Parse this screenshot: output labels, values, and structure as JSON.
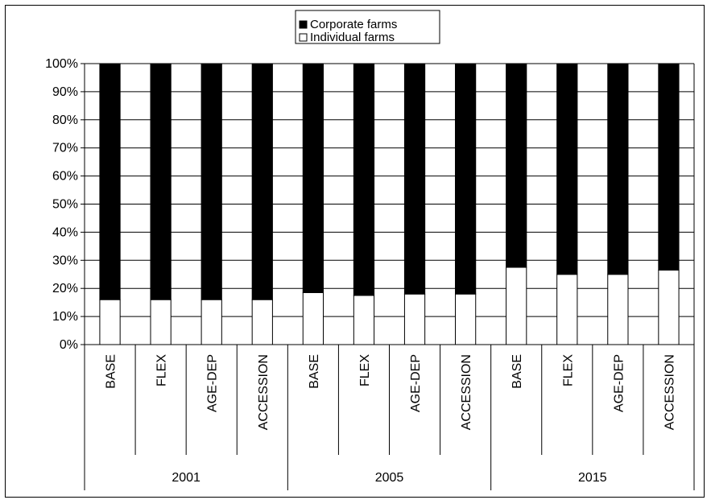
{
  "chart_data": {
    "type": "bar",
    "stacked": "percent",
    "title": "",
    "xlabel": "",
    "ylabel": "",
    "ylim": [
      0,
      100
    ],
    "y_ticks": [
      "0%",
      "10%",
      "20%",
      "30%",
      "40%",
      "50%",
      "60%",
      "70%",
      "80%",
      "90%",
      "100%"
    ],
    "grid": true,
    "legend_position": "top-center",
    "groups": [
      {
        "label": "2001",
        "categories": [
          "BASE",
          "FLEX",
          "AGE-DEP",
          "ACCESSION"
        ]
      },
      {
        "label": "2005",
        "categories": [
          "BASE",
          "FLEX",
          "AGE-DEP",
          "ACCESSION"
        ]
      },
      {
        "label": "2015",
        "categories": [
          "BASE",
          "FLEX",
          "AGE-DEP",
          "ACCESSION"
        ]
      }
    ],
    "series": [
      {
        "name": "Individual farms",
        "color": "#ffffff",
        "values": [
          16,
          16,
          16,
          16,
          18.5,
          17.5,
          18,
          18,
          27.5,
          25,
          25,
          26.5
        ]
      },
      {
        "name": "Corporate farms",
        "color": "#000000",
        "values": [
          84,
          84,
          84,
          84,
          81.5,
          82.5,
          82,
          82,
          72.5,
          75,
          75,
          73.5
        ]
      }
    ]
  },
  "legend": {
    "items": [
      {
        "label": "Corporate farms",
        "color": "#000000"
      },
      {
        "label": "Individual farms",
        "color": "#ffffff"
      }
    ]
  }
}
